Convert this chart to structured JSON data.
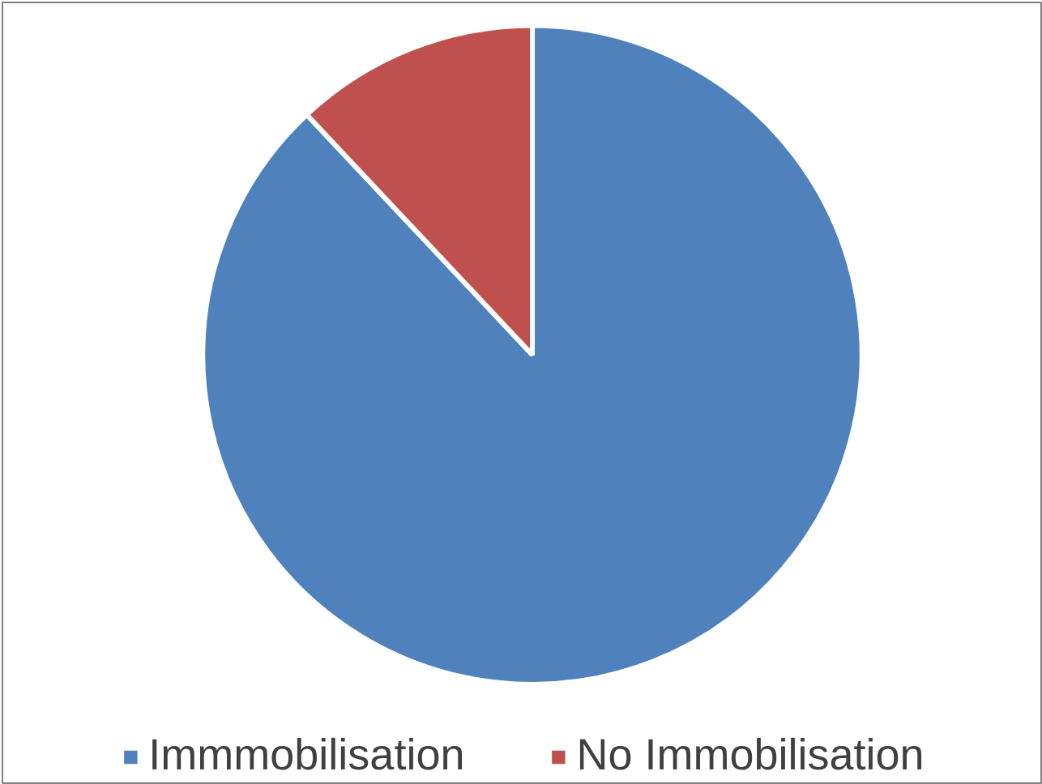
{
  "chart_data": {
    "type": "pie",
    "categories": [
      "Immmobilisation",
      "No Immobilisation"
    ],
    "values": [
      88,
      12
    ],
    "colors": [
      "#4f81bd",
      "#c0504d"
    ],
    "legend": "bottom"
  }
}
